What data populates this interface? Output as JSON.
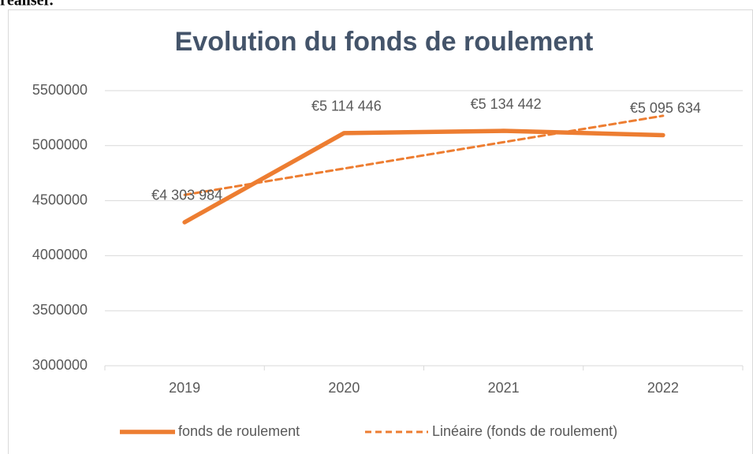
{
  "fragment": "réaliser.",
  "chart_data": {
    "type": "line",
    "title": "Evolution du fonds de roulement",
    "categories": [
      "2019",
      "2020",
      "2021",
      "2022"
    ],
    "series": [
      {
        "name": "fonds de roulement",
        "color": "#ed7d31",
        "line_style": "solid",
        "values": [
          4303984,
          5114446,
          5134442,
          5095634
        ],
        "value_labels": [
          "€4 303 984",
          "€5 114 446",
          "€5 134 442",
          "€5 095 634"
        ]
      },
      {
        "name": "Linéaire (fonds de roulement)",
        "color": "#ed7d31",
        "line_style": "dashed",
        "values": [
          4552885,
          4792379,
          5031874,
          5271368
        ]
      }
    ],
    "ylim": [
      3000000,
      5500000
    ],
    "yticks": [
      3000000,
      3500000,
      4000000,
      4500000,
      5000000,
      5500000
    ],
    "grid": true,
    "legend": "bottom"
  }
}
